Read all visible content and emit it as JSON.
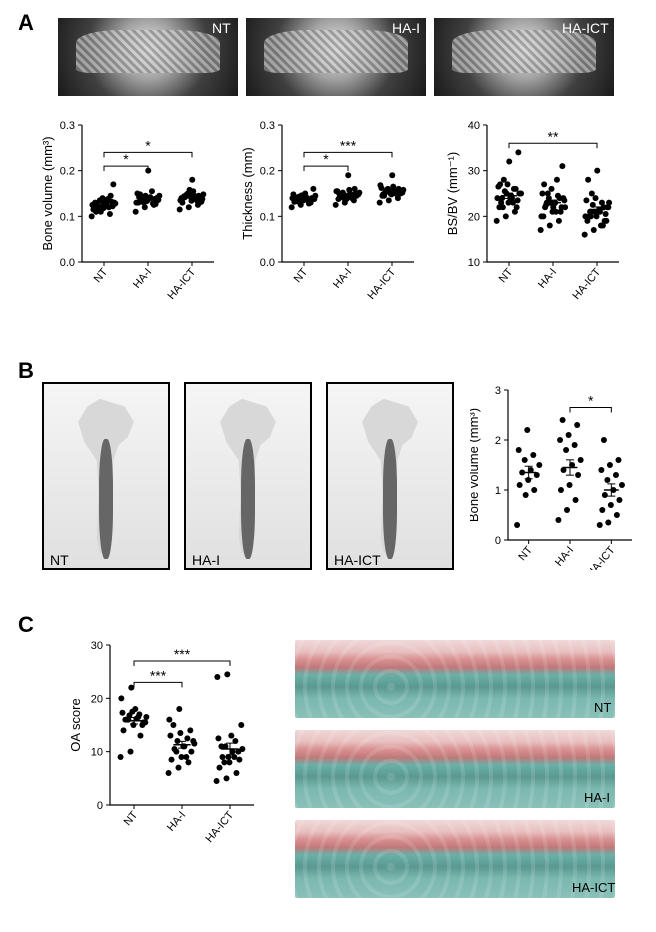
{
  "panels": {
    "A": {
      "label": "A",
      "ct_labels": [
        "NT",
        "HA-I",
        "HA-ICT"
      ],
      "charts": [
        {
          "id": "bone-volume-a",
          "ylabel": "Bone volume (mm³)",
          "ylim": [
            0.0,
            0.3
          ],
          "ytick_step": 0.1,
          "categories": [
            "NT",
            "HA-I",
            "HA-ICT"
          ],
          "points": [
            [
              0.1,
              0.11,
              0.105,
              0.12,
              0.118,
              0.122,
              0.125,
              0.13,
              0.128,
              0.135,
              0.12,
              0.115,
              0.14,
              0.132,
              0.11,
              0.127,
              0.13,
              0.12,
              0.138,
              0.125,
              0.118,
              0.145,
              0.13,
              0.128,
              0.17
            ],
            [
              0.11,
              0.12,
              0.125,
              0.13,
              0.135,
              0.14,
              0.138,
              0.142,
              0.145,
              0.13,
              0.128,
              0.15,
              0.133,
              0.127,
              0.148,
              0.14,
              0.136,
              0.132,
              0.155,
              0.13,
              0.145,
              0.138,
              0.142,
              0.2,
              0.135
            ],
            [
              0.115,
              0.12,
              0.125,
              0.13,
              0.134,
              0.138,
              0.142,
              0.145,
              0.148,
              0.15,
              0.135,
              0.14,
              0.152,
              0.13,
              0.144,
              0.155,
              0.138,
              0.148,
              0.142,
              0.135,
              0.158,
              0.145,
              0.14,
              0.18,
              0.132
            ]
          ],
          "means": [
            0.125,
            0.138,
            0.142
          ],
          "sig": [
            {
              "from": 0,
              "to": 1,
              "label": "*",
              "y": 0.21
            },
            {
              "from": 0,
              "to": 2,
              "label": "*",
              "y": 0.24
            }
          ]
        },
        {
          "id": "thickness-a",
          "ylabel": "Thickness (mm)",
          "ylim": [
            0.0,
            0.3
          ],
          "ytick_step": 0.1,
          "categories": [
            "NT",
            "HA-I",
            "HA-ICT"
          ],
          "points": [
            [
              0.12,
              0.125,
              0.13,
              0.132,
              0.135,
              0.138,
              0.14,
              0.142,
              0.145,
              0.13,
              0.128,
              0.148,
              0.136,
              0.14,
              0.133,
              0.15,
              0.138,
              0.143,
              0.135,
              0.14,
              0.146,
              0.13,
              0.138,
              0.142,
              0.16
            ],
            [
              0.125,
              0.13,
              0.135,
              0.138,
              0.142,
              0.145,
              0.148,
              0.15,
              0.152,
              0.14,
              0.146,
              0.155,
              0.138,
              0.15,
              0.144,
              0.158,
              0.148,
              0.152,
              0.14,
              0.155,
              0.145,
              0.16,
              0.15,
              0.19,
              0.148
            ],
            [
              0.13,
              0.135,
              0.14,
              0.145,
              0.148,
              0.15,
              0.152,
              0.155,
              0.158,
              0.16,
              0.148,
              0.162,
              0.15,
              0.156,
              0.145,
              0.165,
              0.152,
              0.158,
              0.15,
              0.168,
              0.155,
              0.16,
              0.148,
              0.19,
              0.155
            ]
          ],
          "means": [
            0.138,
            0.148,
            0.155
          ],
          "sig": [
            {
              "from": 0,
              "to": 1,
              "label": "*",
              "y": 0.21
            },
            {
              "from": 0,
              "to": 2,
              "label": "***",
              "y": 0.24
            }
          ]
        },
        {
          "id": "bsbv-a",
          "ylabel": "BS/BV (mm⁻¹)",
          "ylim": [
            10,
            40
          ],
          "ytick_step": 10,
          "categories": [
            "NT",
            "HA-I",
            "HA-ICT"
          ],
          "points": [
            [
              19,
              20,
              21,
              22,
              23,
              23.5,
              24,
              24.5,
              25,
              25.5,
              26,
              26.5,
              27,
              22,
              23,
              24,
              25,
              28,
              23,
              24,
              25,
              26,
              27,
              32,
              34,
              22,
              24,
              25
            ],
            [
              17,
              18,
              19,
              20,
              21,
              22,
              22.5,
              23,
              23.5,
              24,
              24.5,
              25,
              26,
              21,
              22,
              23,
              24,
              25,
              28,
              20,
              23,
              24,
              27,
              22,
              31,
              23,
              21,
              22
            ],
            [
              16,
              17,
              18,
              19,
              20,
              20.5,
              21,
              21.5,
              22,
              22.5,
              23,
              23.5,
              24,
              19,
              20,
              21,
              22,
              25,
              18,
              20,
              21,
              22,
              28,
              30,
              19,
              20,
              21,
              23
            ]
          ],
          "means": [
            24.5,
            23,
            21.5
          ],
          "sig": [
            {
              "from": 0,
              "to": 2,
              "label": "**",
              "y": 36
            }
          ]
        }
      ]
    },
    "B": {
      "label": "B",
      "bone_labels": [
        "NT",
        "HA-I",
        "HA-ICT"
      ],
      "chart": {
        "id": "bone-volume-b",
        "ylabel": "Bone volume (mm³)",
        "ylim": [
          0,
          3
        ],
        "ytick_step": 1,
        "categories": [
          "NT",
          "HA-I",
          "HA-ICT"
        ],
        "points": [
          [
            0.3,
            0.9,
            1.0,
            1.1,
            1.2,
            1.3,
            1.35,
            1.4,
            1.5,
            1.6,
            1.7,
            1.8,
            2.2
          ],
          [
            0.4,
            0.6,
            0.8,
            1.0,
            1.1,
            1.3,
            1.4,
            1.5,
            1.6,
            1.8,
            1.9,
            2.0,
            2.1,
            2.3,
            2.4
          ],
          [
            0.3,
            0.35,
            0.5,
            0.6,
            0.7,
            0.8,
            0.9,
            1.0,
            1.1,
            1.2,
            1.3,
            1.4,
            1.5,
            1.6,
            2.0
          ]
        ],
        "means": [
          1.35,
          1.45,
          1.0
        ],
        "sig": [
          {
            "from": 1,
            "to": 2,
            "label": "*",
            "y": 2.65
          }
        ]
      }
    },
    "C": {
      "label": "C",
      "histo_labels": [
        "NT",
        "HA-I",
        "HA-ICT"
      ],
      "chart": {
        "id": "oa-score",
        "ylabel": "OA score",
        "ylim": [
          0,
          30
        ],
        "ytick_step": 10,
        "categories": [
          "NT",
          "HA-I",
          "HA-ICT"
        ],
        "points": [
          [
            9,
            10,
            13,
            14,
            15,
            15.5,
            16,
            16.2,
            16.5,
            16.8,
            17,
            17.3,
            17.5,
            15,
            16,
            18,
            15.5,
            16,
            16.5,
            20,
            22
          ],
          [
            6,
            7,
            8,
            8.5,
            9,
            10,
            10.5,
            11,
            11.5,
            12,
            12.5,
            13,
            13.5,
            14,
            15,
            11,
            12,
            10,
            9,
            16,
            18
          ],
          [
            4.5,
            5,
            6,
            7,
            8,
            8.5,
            9,
            10,
            10.5,
            11,
            12,
            12.5,
            9,
            10,
            11,
            13,
            15,
            8,
            9,
            24,
            24.5
          ]
        ],
        "means": [
          15.8,
          11.3,
          10.5
        ],
        "sig": [
          {
            "from": 0,
            "to": 1,
            "label": "***",
            "y": 23
          },
          {
            "from": 0,
            "to": 2,
            "label": "***",
            "y": 27
          }
        ]
      }
    }
  },
  "colors": {
    "marker": "#000000",
    "axis": "#000000",
    "background": "#ffffff"
  },
  "marker_size": 3,
  "font_size_axis": 13
}
